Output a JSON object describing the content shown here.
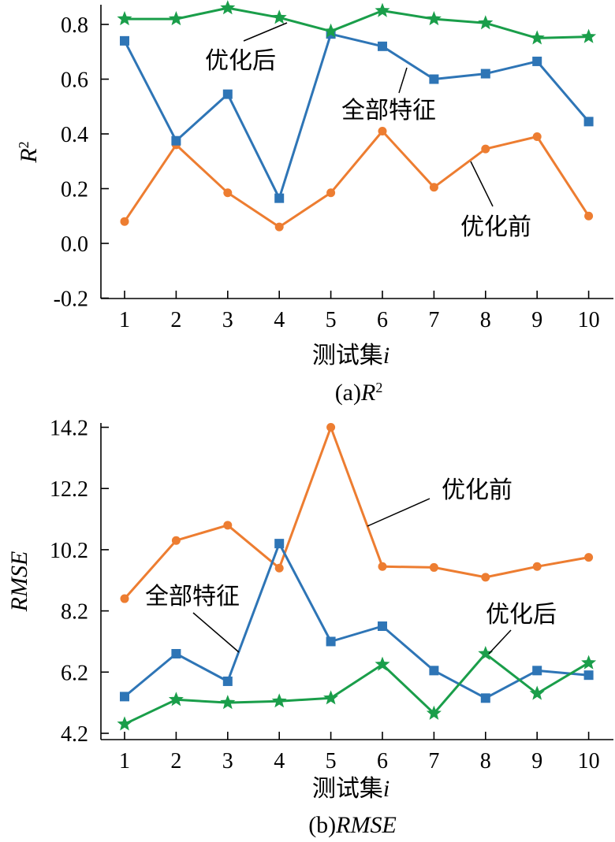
{
  "chart_data": [
    {
      "type": "line",
      "caption_prefix": "(a)",
      "caption_math": "R",
      "caption_sup": "2",
      "xlabel": "测试集",
      "xlabel_var": "i",
      "ylabel": "R",
      "ylabel_sup": "2",
      "x": [
        1,
        2,
        3,
        4,
        5,
        6,
        7,
        8,
        9,
        10
      ],
      "x_ticks": [
        "1",
        "2",
        "3",
        "4",
        "5",
        "6",
        "7",
        "8",
        "9",
        "10"
      ],
      "ylim": [
        -0.2,
        0.87
      ],
      "y_ticks": [
        -0.2,
        0.0,
        0.2,
        0.4,
        0.6,
        0.8
      ],
      "y_tick_labels": [
        "-0.2",
        "0.0",
        "0.2",
        "0.4",
        "0.6",
        "0.8"
      ],
      "series": [
        {
          "name": "优化前",
          "color": "#ed7d31",
          "marker": "circle",
          "values": [
            0.08,
            0.36,
            0.185,
            0.06,
            0.185,
            0.41,
            0.205,
            0.345,
            0.39,
            0.1
          ]
        },
        {
          "name": "全部特征",
          "color": "#2e75b6",
          "marker": "square",
          "values": [
            0.74,
            0.375,
            0.545,
            0.165,
            0.765,
            0.72,
            0.6,
            0.62,
            0.665,
            0.445
          ]
        },
        {
          "name": "优化后",
          "color": "#1a9e4a",
          "marker": "star",
          "values": [
            0.82,
            0.82,
            0.86,
            0.825,
            0.775,
            0.85,
            0.82,
            0.805,
            0.75,
            0.755
          ]
        }
      ],
      "grid": false
    },
    {
      "type": "line",
      "caption_prefix": "(b)",
      "caption_math": "RMSE",
      "caption_sup": "",
      "xlabel": "测试集",
      "xlabel_var": "i",
      "ylabel": "RMSE",
      "ylabel_sup": "",
      "x": [
        1,
        2,
        3,
        4,
        5,
        6,
        7,
        8,
        9,
        10
      ],
      "x_ticks": [
        "1",
        "2",
        "3",
        "4",
        "5",
        "6",
        "7",
        "8",
        "9",
        "10"
      ],
      "ylim": [
        4.2,
        14.2
      ],
      "y_ticks": [
        4.2,
        6.2,
        8.2,
        10.2,
        12.2,
        14.2
      ],
      "y_tick_labels": [
        "4.2",
        "6.2",
        "8.2",
        "10.2",
        "12.2",
        "14.2"
      ],
      "series": [
        {
          "name": "优化前",
          "color": "#ed7d31",
          "marker": "circle",
          "values": [
            8.6,
            10.5,
            11.0,
            9.6,
            14.2,
            9.65,
            9.62,
            9.3,
            9.65,
            9.95
          ]
        },
        {
          "name": "全部特征",
          "color": "#2e75b6",
          "marker": "square",
          "values": [
            5.4,
            6.8,
            5.9,
            10.4,
            7.2,
            7.7,
            6.25,
            5.35,
            6.25,
            6.1
          ]
        },
        {
          "name": "优化后",
          "color": "#1a9e4a",
          "marker": "star",
          "values": [
            4.5,
            5.3,
            5.2,
            5.25,
            5.35,
            6.45,
            4.85,
            6.8,
            5.5,
            6.5
          ]
        }
      ],
      "grid": false
    }
  ]
}
